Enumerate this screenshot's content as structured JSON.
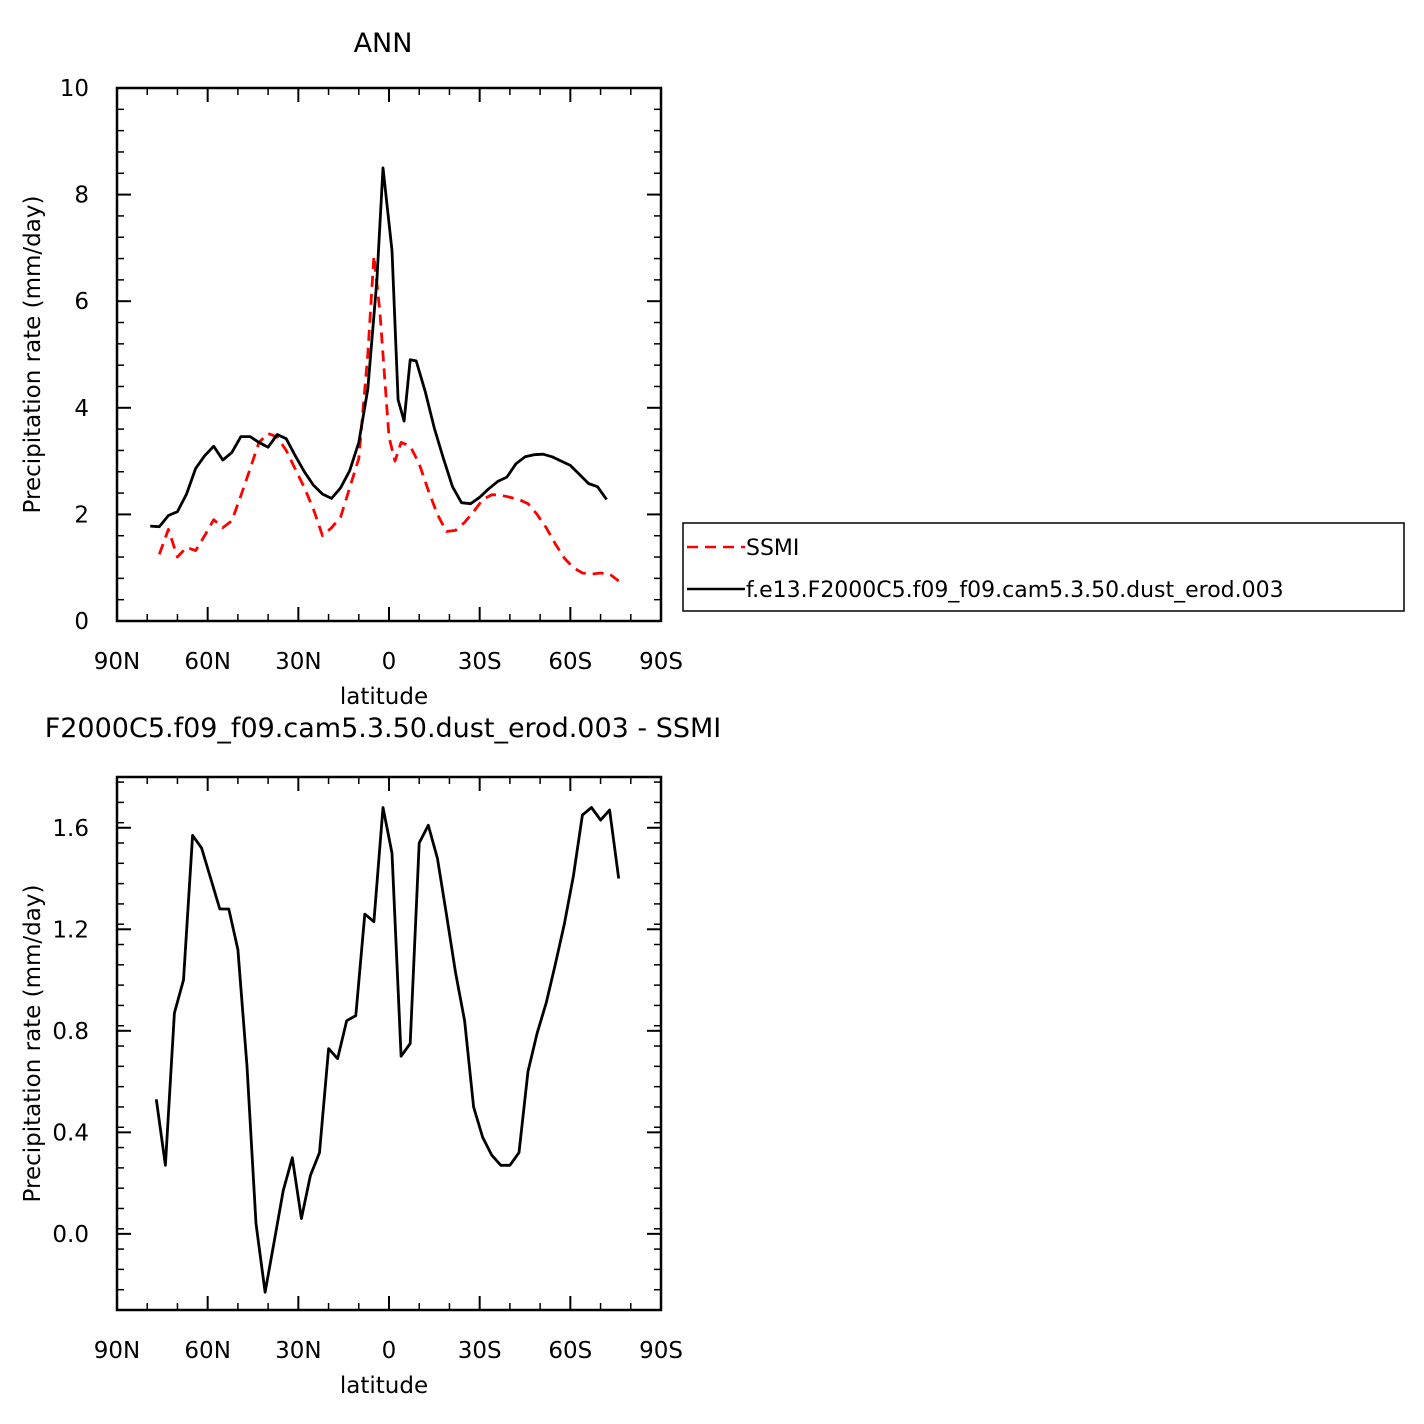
{
  "chart_data": [
    {
      "type": "line",
      "title": "ANN",
      "xlabel": "latitude",
      "ylabel": "Precipitation rate (mm/day)",
      "xlim": [
        90,
        -90
      ],
      "ylim": [
        0,
        10
      ],
      "x_ticks": [
        90,
        60,
        30,
        0,
        -30,
        -60,
        -90
      ],
      "x_tick_labels": [
        "90N",
        "60N",
        "30N",
        "0",
        "30S",
        "60S",
        "90S"
      ],
      "y_ticks": [
        0,
        2,
        4,
        6,
        8,
        10
      ],
      "y_tick_labels": [
        "0",
        "2",
        "4",
        "6",
        "8",
        "10"
      ],
      "grid": false,
      "legend": "right",
      "series": [
        {
          "name": "SSMI",
          "color": "#ff0000",
          "dash": "dashed",
          "points": [
            [
              76,
              1.25
            ],
            [
              73,
              1.72
            ],
            [
              70,
              1.2
            ],
            [
              67,
              1.38
            ],
            [
              64,
              1.32
            ],
            [
              61,
              1.6
            ],
            [
              58,
              1.9
            ],
            [
              55,
              1.75
            ],
            [
              52,
              1.88
            ],
            [
              49,
              2.35
            ],
            [
              46,
              2.85
            ],
            [
              43,
              3.35
            ],
            [
              40,
              3.52
            ],
            [
              37,
              3.45
            ],
            [
              34,
              3.2
            ],
            [
              31,
              2.85
            ],
            [
              28,
              2.5
            ],
            [
              25,
              2.1
            ],
            [
              22,
              1.6
            ],
            [
              19,
              1.75
            ],
            [
              16,
              1.95
            ],
            [
              13,
              2.5
            ],
            [
              10,
              3.05
            ],
            [
              7,
              5.0
            ],
            [
              5,
              6.85
            ],
            [
              3,
              5.8
            ],
            [
              0,
              3.45
            ],
            [
              -2,
              3.0
            ],
            [
              -4,
              3.35
            ],
            [
              -7,
              3.28
            ],
            [
              -10,
              2.95
            ],
            [
              -13,
              2.45
            ],
            [
              -16,
              2.0
            ],
            [
              -19,
              1.68
            ],
            [
              -22,
              1.7
            ],
            [
              -25,
              1.85
            ],
            [
              -28,
              2.05
            ],
            [
              -31,
              2.28
            ],
            [
              -34,
              2.37
            ],
            [
              -37,
              2.36
            ],
            [
              -40,
              2.32
            ],
            [
              -43,
              2.28
            ],
            [
              -46,
              2.2
            ],
            [
              -49,
              2.0
            ],
            [
              -52,
              1.75
            ],
            [
              -55,
              1.45
            ],
            [
              -58,
              1.18
            ],
            [
              -61,
              1.0
            ],
            [
              -64,
              0.9
            ],
            [
              -67,
              0.88
            ],
            [
              -70,
              0.9
            ],
            [
              -73,
              0.88
            ],
            [
              -76,
              0.75
            ]
          ]
        },
        {
          "name": "f.e13.F2000C5.f09_f09.cam5.3.50.dust_erod.003",
          "color": "#000000",
          "dash": "solid",
          "points": [
            [
              79,
              1.78
            ],
            [
              76,
              1.77
            ],
            [
              73,
              1.98
            ],
            [
              70,
              2.05
            ],
            [
              67,
              2.38
            ],
            [
              64,
              2.86
            ],
            [
              61,
              3.1
            ],
            [
              58,
              3.28
            ],
            [
              55,
              3.02
            ],
            [
              52,
              3.16
            ],
            [
              49,
              3.46
            ],
            [
              46,
              3.46
            ],
            [
              43,
              3.35
            ],
            [
              40,
              3.26
            ],
            [
              37,
              3.5
            ],
            [
              34,
              3.42
            ],
            [
              31,
              3.1
            ],
            [
              28,
              2.8
            ],
            [
              25,
              2.55
            ],
            [
              22,
              2.38
            ],
            [
              19,
              2.3
            ],
            [
              16,
              2.5
            ],
            [
              13,
              2.82
            ],
            [
              10,
              3.35
            ],
            [
              7,
              4.35
            ],
            [
              4,
              6.4
            ],
            [
              2,
              8.5
            ],
            [
              -1,
              6.95
            ],
            [
              -3,
              4.15
            ],
            [
              -5,
              3.75
            ],
            [
              -7,
              4.9
            ],
            [
              -9,
              4.88
            ],
            [
              -12,
              4.3
            ],
            [
              -15,
              3.62
            ],
            [
              -18,
              3.05
            ],
            [
              -21,
              2.52
            ],
            [
              -24,
              2.22
            ],
            [
              -27,
              2.2
            ],
            [
              -30,
              2.32
            ],
            [
              -33,
              2.48
            ],
            [
              -36,
              2.62
            ],
            [
              -39,
              2.7
            ],
            [
              -42,
              2.95
            ],
            [
              -45,
              3.08
            ],
            [
              -48,
              3.12
            ],
            [
              -51,
              3.13
            ],
            [
              -54,
              3.08
            ],
            [
              -57,
              3.0
            ],
            [
              -60,
              2.92
            ],
            [
              -63,
              2.75
            ],
            [
              -66,
              2.58
            ],
            [
              -69,
              2.52
            ],
            [
              -72,
              2.28
            ]
          ]
        }
      ]
    },
    {
      "type": "line",
      "title": "F2000C5.f09_f09.cam5.3.50.dust_erod.003 - SSMI",
      "xlabel": "latitude",
      "ylabel": "Precipitation rate (mm/day)",
      "xlim": [
        90,
        -90
      ],
      "ylim": [
        -0.3,
        1.8
      ],
      "x_ticks": [
        90,
        60,
        30,
        0,
        -30,
        -60,
        -90
      ],
      "x_tick_labels": [
        "90N",
        "60N",
        "30N",
        "0",
        "30S",
        "60S",
        "90S"
      ],
      "y_ticks": [
        0.0,
        0.4,
        0.8,
        1.2,
        1.6
      ],
      "y_tick_labels": [
        "0.0",
        "0.4",
        "0.8",
        "1.2",
        "1.6"
      ],
      "grid": false,
      "series": [
        {
          "color": "#000000",
          "dash": "solid",
          "points": [
            [
              77,
              0.53
            ],
            [
              74,
              0.27
            ],
            [
              71,
              0.87
            ],
            [
              68,
              1.0
            ],
            [
              65,
              1.57
            ],
            [
              62,
              1.52
            ],
            [
              59,
              1.4
            ],
            [
              56,
              1.28
            ],
            [
              53,
              1.28
            ],
            [
              50,
              1.12
            ],
            [
              47,
              0.66
            ],
            [
              44,
              0.04
            ],
            [
              41,
              -0.23
            ],
            [
              38,
              -0.03
            ],
            [
              35,
              0.17
            ],
            [
              32,
              0.3
            ],
            [
              29,
              0.06
            ],
            [
              26,
              0.23
            ],
            [
              23,
              0.32
            ],
            [
              20,
              0.73
            ],
            [
              17,
              0.69
            ],
            [
              14,
              0.84
            ],
            [
              11,
              0.86
            ],
            [
              8,
              1.26
            ],
            [
              5,
              1.23
            ],
            [
              2,
              1.68
            ],
            [
              -1,
              1.5
            ],
            [
              -4,
              0.7
            ],
            [
              -7,
              0.75
            ],
            [
              -10,
              1.54
            ],
            [
              -13,
              1.61
            ],
            [
              -16,
              1.48
            ],
            [
              -19,
              1.26
            ],
            [
              -22,
              1.03
            ],
            [
              -25,
              0.84
            ],
            [
              -28,
              0.5
            ],
            [
              -31,
              0.38
            ],
            [
              -34,
              0.31
            ],
            [
              -37,
              0.27
            ],
            [
              -40,
              0.27
            ],
            [
              -43,
              0.32
            ],
            [
              -46,
              0.64
            ],
            [
              -49,
              0.79
            ],
            [
              -52,
              0.91
            ],
            [
              -55,
              1.06
            ],
            [
              -58,
              1.22
            ],
            [
              -61,
              1.41
            ],
            [
              -64,
              1.65
            ],
            [
              -67,
              1.68
            ],
            [
              -70,
              1.63
            ],
            [
              -73,
              1.67
            ],
            [
              -76,
              1.4
            ]
          ]
        }
      ]
    }
  ]
}
